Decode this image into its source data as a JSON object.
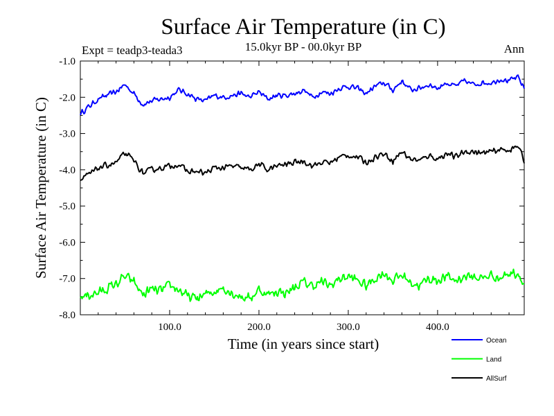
{
  "header": {
    "title": "Surface Air Temperature (in C)",
    "experiment": "Expt = teadp3-teada3",
    "period": "15.0kyr BP - 00.0kyr BP",
    "season": "Ann"
  },
  "chart_data": {
    "type": "line",
    "title": "Surface Air Temperature (in C)",
    "xlabel": "Time (in years since start)",
    "ylabel": "Surface Air Temperature (in C)",
    "xlim": [
      0,
      497
    ],
    "ylim": [
      -8.0,
      -1.0
    ],
    "x_ticks": [
      100,
      200,
      300,
      400
    ],
    "x_tick_labels": [
      "100.0",
      "200.0",
      "300.0",
      "400.0"
    ],
    "y_ticks": [
      -1,
      -2,
      -3,
      -4,
      -5,
      -6,
      -7,
      -8
    ],
    "y_tick_labels": [
      "-1.0",
      "-2.0",
      "-3.0",
      "-4.0",
      "-5.0",
      "-6.0",
      "-7.0",
      "-8.0"
    ],
    "legend_position": "bottom-right, outside plot",
    "series": [
      {
        "name": "Ocean",
        "color": "#0000ff",
        "x": [
          0,
          20,
          40,
          50,
          60,
          70,
          80,
          90,
          100,
          110,
          120,
          130,
          140,
          150,
          160,
          170,
          180,
          190,
          200,
          210,
          220,
          230,
          240,
          250,
          260,
          270,
          280,
          290,
          300,
          310,
          320,
          330,
          340,
          350,
          360,
          370,
          380,
          390,
          400,
          410,
          420,
          430,
          440,
          450,
          460,
          470,
          480,
          490,
          497
        ],
        "values": [
          -2.45,
          -2.05,
          -1.85,
          -1.65,
          -1.9,
          -2.2,
          -2.1,
          -2.05,
          -2.0,
          -1.8,
          -1.9,
          -2.05,
          -2.1,
          -1.95,
          -2.0,
          -1.95,
          -1.9,
          -2.0,
          -1.85,
          -2.05,
          -1.95,
          -1.95,
          -1.9,
          -1.8,
          -2.0,
          -1.85,
          -1.9,
          -1.75,
          -1.7,
          -1.75,
          -1.9,
          -1.7,
          -1.6,
          -1.8,
          -1.55,
          -1.8,
          -1.75,
          -1.65,
          -1.75,
          -1.6,
          -1.7,
          -1.55,
          -1.65,
          -1.6,
          -1.6,
          -1.5,
          -1.55,
          -1.45,
          -1.75
        ],
        "noise": 0.09
      },
      {
        "name": "Land",
        "color": "#00ff00",
        "x": [
          0,
          20,
          40,
          50,
          60,
          70,
          80,
          90,
          100,
          110,
          120,
          130,
          140,
          150,
          160,
          170,
          180,
          190,
          200,
          210,
          220,
          230,
          240,
          250,
          260,
          270,
          280,
          290,
          300,
          310,
          320,
          330,
          340,
          350,
          360,
          370,
          380,
          390,
          400,
          410,
          420,
          430,
          440,
          450,
          460,
          470,
          480,
          490,
          497
        ],
        "values": [
          -7.5,
          -7.4,
          -7.15,
          -6.95,
          -7.1,
          -7.45,
          -7.3,
          -7.35,
          -7.2,
          -7.3,
          -7.5,
          -7.55,
          -7.45,
          -7.35,
          -7.25,
          -7.4,
          -7.5,
          -7.55,
          -7.3,
          -7.45,
          -7.35,
          -7.4,
          -7.25,
          -7.1,
          -7.2,
          -7.1,
          -7.2,
          -7.0,
          -6.95,
          -7.05,
          -7.2,
          -7.0,
          -6.85,
          -7.05,
          -6.9,
          -7.1,
          -7.2,
          -7.0,
          -7.05,
          -6.95,
          -7.05,
          -6.95,
          -6.95,
          -7.0,
          -6.9,
          -7.0,
          -6.85,
          -6.85,
          -7.15
        ],
        "noise": 0.17
      },
      {
        "name": "AllSurf",
        "color": "#000000",
        "x": [
          0,
          20,
          40,
          50,
          60,
          70,
          80,
          90,
          100,
          110,
          120,
          130,
          140,
          150,
          160,
          170,
          180,
          190,
          200,
          210,
          220,
          230,
          240,
          250,
          260,
          270,
          280,
          290,
          300,
          310,
          320,
          330,
          340,
          350,
          360,
          370,
          380,
          390,
          400,
          410,
          420,
          430,
          440,
          450,
          460,
          470,
          480,
          490,
          497
        ],
        "values": [
          -4.3,
          -3.95,
          -3.8,
          -3.55,
          -3.75,
          -4.1,
          -4.0,
          -3.95,
          -3.9,
          -3.85,
          -4.05,
          -4.05,
          -4.1,
          -3.95,
          -3.95,
          -3.9,
          -3.95,
          -4.0,
          -3.85,
          -4.0,
          -3.9,
          -3.85,
          -3.8,
          -3.75,
          -3.9,
          -3.8,
          -3.8,
          -3.65,
          -3.6,
          -3.65,
          -3.8,
          -3.65,
          -3.55,
          -3.75,
          -3.5,
          -3.7,
          -3.75,
          -3.6,
          -3.7,
          -3.55,
          -3.65,
          -3.5,
          -3.5,
          -3.55,
          -3.5,
          -3.45,
          -3.45,
          -3.35,
          -3.75
        ],
        "noise": 0.1
      }
    ]
  }
}
